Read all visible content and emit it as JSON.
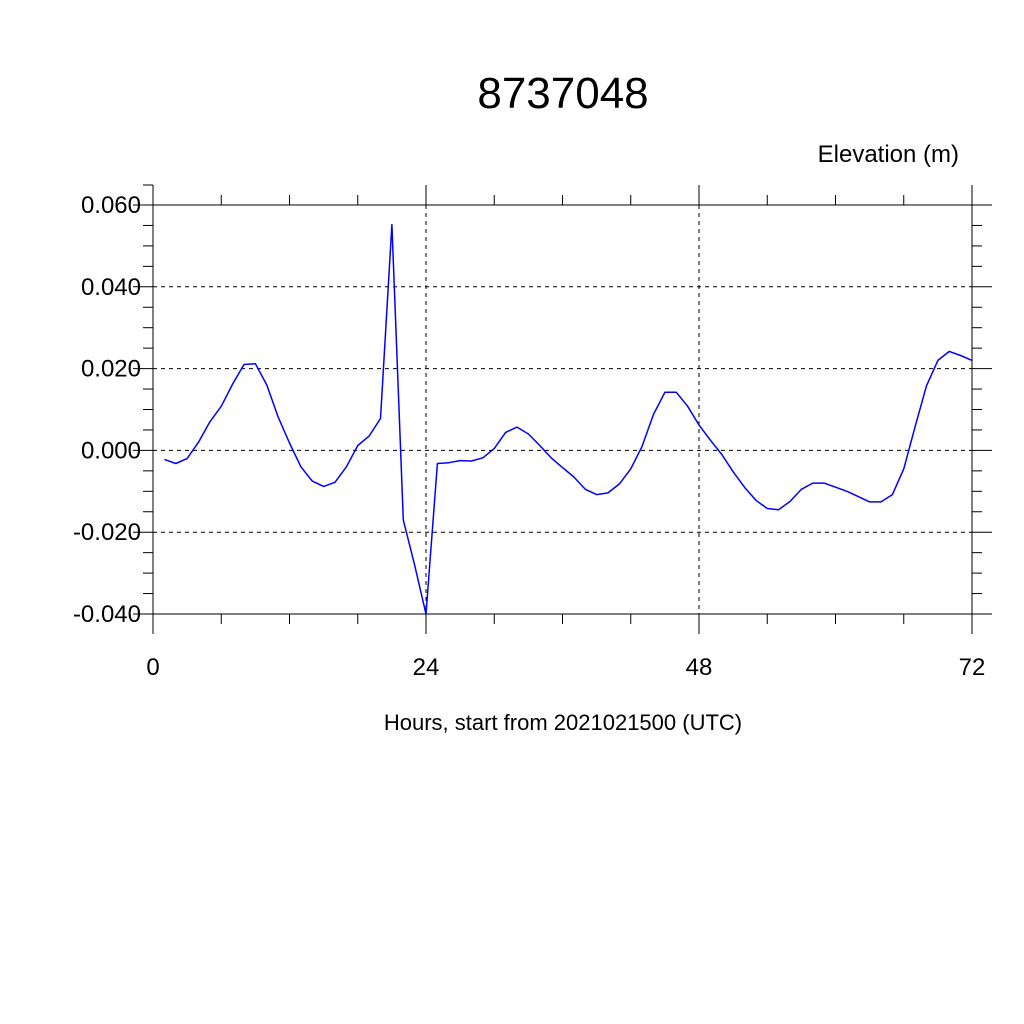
{
  "chart_data": {
    "type": "line",
    "title": "8737048",
    "ylabel": "Elevation (m)",
    "xlabel": "Hours, start from 2021021500 (UTC)",
    "xlim": [
      0,
      72
    ],
    "ylim": [
      -0.04,
      0.06
    ],
    "x_ticks": [
      0,
      24,
      48,
      72
    ],
    "x_tick_labels": [
      "0",
      "24",
      "48",
      "72"
    ],
    "y_ticks": [
      -0.04,
      -0.02,
      0.0,
      0.02,
      0.04,
      0.06
    ],
    "y_tick_labels": [
      "-0.040",
      "-0.020",
      "0.000",
      "0.020",
      "0.040",
      "0.060"
    ],
    "grid": true,
    "line_color": "#0000ff",
    "series": [
      {
        "x": [
          1,
          2,
          3,
          4,
          5,
          6,
          7,
          8,
          9,
          10,
          11,
          12,
          13,
          14,
          15,
          16,
          17,
          18,
          19,
          20,
          21,
          22,
          23,
          24,
          25,
          26,
          27,
          28,
          29,
          30,
          31,
          32,
          33,
          34,
          35,
          36,
          37,
          38,
          39,
          40,
          41,
          42,
          43,
          44,
          45,
          46,
          47,
          48,
          49,
          50,
          51,
          52,
          53,
          54,
          55,
          56,
          57,
          58,
          59,
          60,
          61,
          62,
          63,
          64,
          65,
          66,
          67,
          68,
          69,
          70,
          71,
          72
        ],
        "values": [
          -0.0022,
          -0.0032,
          -0.002,
          0.002,
          0.007,
          0.0108,
          0.0162,
          0.021,
          0.0212,
          0.016,
          0.0082,
          0.0018,
          -0.004,
          -0.0075,
          -0.0088,
          -0.0078,
          -0.004,
          0.0012,
          0.0035,
          0.0078,
          0.0552,
          -0.017,
          -0.028,
          -0.04,
          -0.0032,
          -0.003,
          -0.0025,
          -0.0026,
          -0.0018,
          0.0005,
          0.0044,
          0.0057,
          0.004,
          0.0012,
          -0.0018,
          -0.0042,
          -0.0065,
          -0.0095,
          -0.0108,
          -0.0104,
          -0.0082,
          -0.0045,
          0.001,
          0.0088,
          0.0142,
          0.0142,
          0.0108,
          0.0062,
          0.0025,
          -0.001,
          -0.0052,
          -0.009,
          -0.0122,
          -0.0142,
          -0.0145,
          -0.0125,
          -0.0095,
          -0.008,
          -0.008,
          -0.009,
          -0.01,
          -0.0113,
          -0.0126,
          -0.0126,
          -0.0108,
          -0.0045,
          0.0058,
          0.0158,
          0.022,
          0.0242,
          0.0232,
          0.022
        ]
      }
    ]
  }
}
